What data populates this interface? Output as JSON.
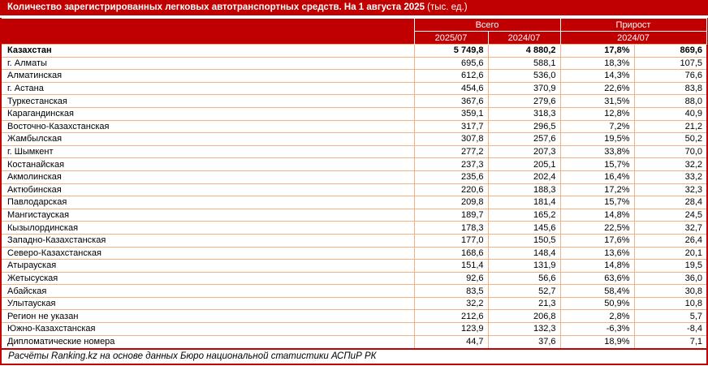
{
  "title": {
    "main": "Количество зарегистрированных легковых автотранспортных средств. На 1 августа 2025",
    "suffix": " (тыс. ед.)"
  },
  "footer": "Расчёты Ranking.kz на основе данных Бюро национальной статистики АСПиР РК",
  "colors": {
    "accent": "#C00000",
    "grid": "#F2B183",
    "header_text": "#FFFFFF"
  },
  "chart_data": {
    "type": "table",
    "title": "Количество зарегистрированных легковых автотранспортных средств. На 1 августа 2025 (тыс. ед.)",
    "column_groups": [
      {
        "label": "Всего"
      },
      {
        "label": "Прирост"
      }
    ],
    "sub_headers": {
      "total_2025": "2025/07",
      "total_2024": "2024/07",
      "growth": "2024/07"
    },
    "rows": [
      {
        "name": "Казахстан",
        "total_2025": "5 749,8",
        "total_2024": "4 880,2",
        "growth_pct": "17,8%",
        "growth_abs": "869,6",
        "is_total": true
      },
      {
        "name": "г. Алматы",
        "total_2025": "695,6",
        "total_2024": "588,1",
        "growth_pct": "18,3%",
        "growth_abs": "107,5"
      },
      {
        "name": "Алматинская",
        "total_2025": "612,6",
        "total_2024": "536,0",
        "growth_pct": "14,3%",
        "growth_abs": "76,6"
      },
      {
        "name": "г. Астана",
        "total_2025": "454,6",
        "total_2024": "370,9",
        "growth_pct": "22,6%",
        "growth_abs": "83,8"
      },
      {
        "name": "Туркестанская",
        "total_2025": "367,6",
        "total_2024": "279,6",
        "growth_pct": "31,5%",
        "growth_abs": "88,0"
      },
      {
        "name": "Карагандинская",
        "total_2025": "359,1",
        "total_2024": "318,3",
        "growth_pct": "12,8%",
        "growth_abs": "40,9"
      },
      {
        "name": "Восточно-Казахстанская",
        "total_2025": "317,7",
        "total_2024": "296,5",
        "growth_pct": "7,2%",
        "growth_abs": "21,2"
      },
      {
        "name": "Жамбылская",
        "total_2025": "307,8",
        "total_2024": "257,6",
        "growth_pct": "19,5%",
        "growth_abs": "50,2"
      },
      {
        "name": "г. Шымкент",
        "total_2025": "277,2",
        "total_2024": "207,3",
        "growth_pct": "33,8%",
        "growth_abs": "70,0"
      },
      {
        "name": "Костанайская",
        "total_2025": "237,3",
        "total_2024": "205,1",
        "growth_pct": "15,7%",
        "growth_abs": "32,2"
      },
      {
        "name": "Акмолинская",
        "total_2025": "235,6",
        "total_2024": "202,4",
        "growth_pct": "16,4%",
        "growth_abs": "33,2"
      },
      {
        "name": "Актюбинская",
        "total_2025": "220,6",
        "total_2024": "188,3",
        "growth_pct": "17,2%",
        "growth_abs": "32,3"
      },
      {
        "name": "Павлодарская",
        "total_2025": "209,8",
        "total_2024": "181,4",
        "growth_pct": "15,7%",
        "growth_abs": "28,4"
      },
      {
        "name": "Мангистауская",
        "total_2025": "189,7",
        "total_2024": "165,2",
        "growth_pct": "14,8%",
        "growth_abs": "24,5"
      },
      {
        "name": "Кызылординская",
        "total_2025": "178,3",
        "total_2024": "145,6",
        "growth_pct": "22,5%",
        "growth_abs": "32,7"
      },
      {
        "name": "Западно-Казахстанская",
        "total_2025": "177,0",
        "total_2024": "150,5",
        "growth_pct": "17,6%",
        "growth_abs": "26,4"
      },
      {
        "name": "Северо-Казахстанская",
        "total_2025": "168,6",
        "total_2024": "148,4",
        "growth_pct": "13,6%",
        "growth_abs": "20,1"
      },
      {
        "name": "Атырауская",
        "total_2025": "151,4",
        "total_2024": "131,9",
        "growth_pct": "14,8%",
        "growth_abs": "19,5"
      },
      {
        "name": "Жетысуская",
        "total_2025": "92,6",
        "total_2024": "56,6",
        "growth_pct": "63,6%",
        "growth_abs": "36,0"
      },
      {
        "name": "Абайская",
        "total_2025": "83,5",
        "total_2024": "52,7",
        "growth_pct": "58,4%",
        "growth_abs": "30,8"
      },
      {
        "name": "Улытауская",
        "total_2025": "32,2",
        "total_2024": "21,3",
        "growth_pct": "50,9%",
        "growth_abs": "10,8"
      },
      {
        "name": "Регион не указан",
        "total_2025": "212,6",
        "total_2024": "206,8",
        "growth_pct": "2,8%",
        "growth_abs": "5,7"
      },
      {
        "name": "Южно-Казахстанская",
        "total_2025": "123,9",
        "total_2024": "132,3",
        "growth_pct": "-6,3%",
        "growth_abs": "-8,4"
      },
      {
        "name": "Дипломатические номера",
        "total_2025": "44,7",
        "total_2024": "37,6",
        "growth_pct": "18,9%",
        "growth_abs": "7,1"
      }
    ]
  }
}
